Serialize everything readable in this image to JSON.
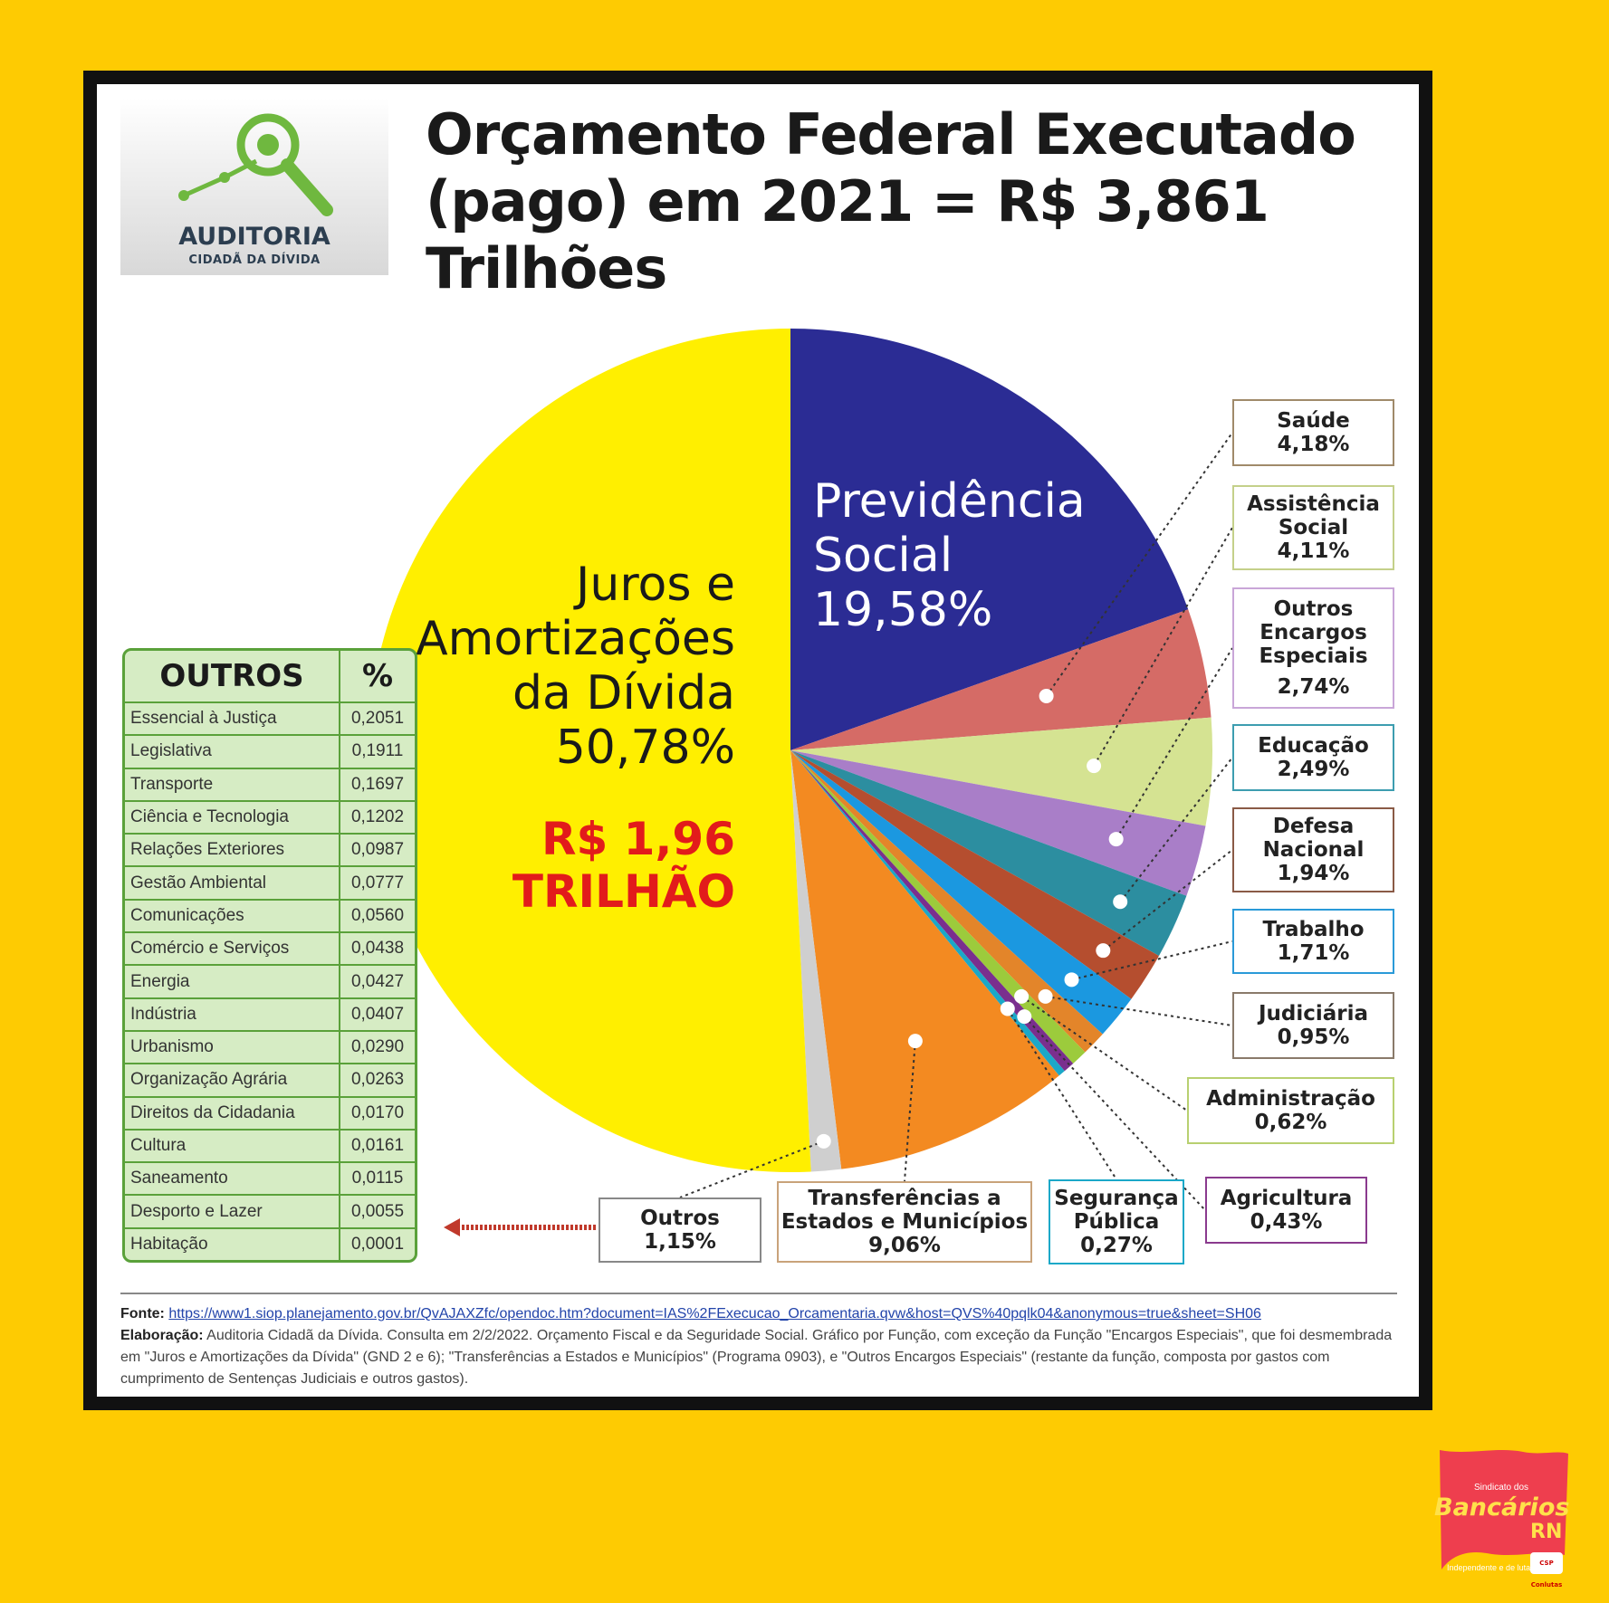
{
  "logo": {
    "title": "AUDITORIA",
    "subtitle": "CIDADÃ DA DÍVIDA"
  },
  "title": {
    "line1": "Orçamento Federal Executado",
    "line2": "(pago) em 2021 = R$ 3,861 Trilhões"
  },
  "colors": {
    "background": "#FECB02",
    "juros": "#FFEF00",
    "previdencia": "#2B2C94",
    "total_red": "#E21B1B"
  },
  "chart_data": {
    "type": "pie",
    "title": "Orçamento Federal Executado (pago) em 2021 = R$ 3,861 Trilhões",
    "unit": "%",
    "slices": [
      {
        "label": "Previdência Social",
        "value": 19.58,
        "display": "19,58%",
        "color": "#2B2C94"
      },
      {
        "label": "Saúde",
        "value": 4.18,
        "display": "4,18%",
        "color": "#D56B66"
      },
      {
        "label": "Assistência Social",
        "value": 4.11,
        "display": "4,11%",
        "color": "#D5E392"
      },
      {
        "label": "Outros Encargos Especiais",
        "value": 2.74,
        "display": "2,74%",
        "color": "#A97EC8"
      },
      {
        "label": "Educação",
        "value": 2.49,
        "display": "2,49%",
        "color": "#2C8EA0"
      },
      {
        "label": "Defesa Nacional",
        "value": 1.94,
        "display": "1,94%",
        "color": "#B54E2F"
      },
      {
        "label": "Trabalho",
        "value": 1.71,
        "display": "1,71%",
        "color": "#1B98E0"
      },
      {
        "label": "Judiciária",
        "value": 0.95,
        "display": "0,95%",
        "color": "#E3852A"
      },
      {
        "label": "Administração",
        "value": 0.62,
        "display": "0,62%",
        "color": "#9CCB3C"
      },
      {
        "label": "Agricultura",
        "value": 0.43,
        "display": "0,43%",
        "color": "#7A2F8E"
      },
      {
        "label": "Segurança Pública",
        "value": 0.27,
        "display": "0,27%",
        "color": "#1BA8C8"
      },
      {
        "label": "Transferências a Estados e Municípios",
        "value": 9.06,
        "display": "9,06%",
        "color": "#F38A21"
      },
      {
        "label": "Outros",
        "value": 1.15,
        "display": "1,15%",
        "color": "#CFCFCF"
      },
      {
        "label": "Juros e Amortizações da Dívida",
        "value": 50.78,
        "display": "50,78%",
        "color": "#FFEF00"
      }
    ]
  },
  "labels": {
    "juros_lines": [
      "Juros e",
      "Amortizações",
      "da Dívida",
      "50,78%"
    ],
    "juros_total": [
      "R$ 1,96",
      "TRILHÃO"
    ],
    "prev_lines": [
      "Previdência",
      "Social",
      "19,58%"
    ],
    "saude": [
      "Saúde",
      "4,18%"
    ],
    "assistencia": [
      "Assistência",
      "Social",
      "4,11%"
    ],
    "outros_encargos": [
      "Outros",
      "Encargos",
      "Especiais",
      "2,74%"
    ],
    "educacao": [
      "Educação",
      "2,49%"
    ],
    "defesa": [
      "Defesa",
      "Nacional",
      "1,94%"
    ],
    "trabalho": [
      "Trabalho",
      "1,71%"
    ],
    "judiciaria": [
      "Judiciária",
      "0,95%"
    ],
    "administracao": [
      "Administração",
      "0,62%"
    ],
    "agricultura": [
      "Agricultura",
      "0,43%"
    ],
    "seguranca": [
      "Segurança",
      "Pública",
      "0,27%"
    ],
    "transferencias": [
      "Transferências a",
      "Estados e Municípios",
      "9,06%"
    ],
    "outros": [
      "Outros",
      "1,15%"
    ]
  },
  "outros_table": {
    "headers": [
      "OUTROS",
      "%"
    ],
    "rows": [
      [
        "Essencial à Justiça",
        "0,2051"
      ],
      [
        "Legislativa",
        "0,1911"
      ],
      [
        "Transporte",
        "0,1697"
      ],
      [
        "Ciência e Tecnologia",
        "0,1202"
      ],
      [
        "Relações Exteriores",
        "0,0987"
      ],
      [
        "Gestão Ambiental",
        "0,0777"
      ],
      [
        "Comunicações",
        "0,0560"
      ],
      [
        "Comércio e Serviços",
        "0,0438"
      ],
      [
        "Energia",
        "0,0427"
      ],
      [
        "Indústria",
        "0,0407"
      ],
      [
        "Urbanismo",
        "0,0290"
      ],
      [
        "Organização Agrária",
        "0,0263"
      ],
      [
        "Direitos da Cidadania",
        "0,0170"
      ],
      [
        "Cultura",
        "0,0161"
      ],
      [
        "Saneamento",
        "0,0115"
      ],
      [
        "Desporto e Lazer",
        "0,0055"
      ],
      [
        "Habitação",
        "0,0001"
      ]
    ]
  },
  "footer": {
    "fonte_label": "Fonte:",
    "fonte_url": "https://www1.siop.planejamento.gov.br/QvAJAXZfc/opendoc.htm?document=IAS%2FExecucao_Orcamentaria.qvw&host=QVS%40pqlk04&anonymous=true&sheet=SH06",
    "elaboracao_label": "Elaboração:",
    "elaboracao_text": "Auditoria Cidadã da Dívida. Consulta em 2/2/2022. Orçamento Fiscal e da Seguridade Social. Gráfico por Função, com exceção da Função \"Encargos Especiais\", que foi desmembrada em \"Juros e Amortizações da Dívida\" (GND 2 e 6); \"Transferências a Estados e Municípios\" (Programa 0903), e \"Outros Encargos Especiais\" (restante da função, composta por gastos com cumprimento de Sentenças Judiciais e outros gastos)."
  },
  "brand": {
    "small": "Sindicato dos",
    "name": "Bancários",
    "rn": "RN",
    "tagline": "Independente e de luta",
    "csp": "CSP Conlutas"
  }
}
